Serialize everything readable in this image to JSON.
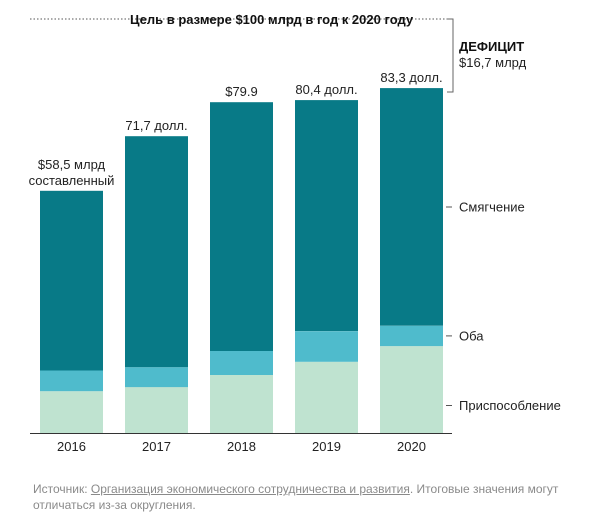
{
  "chart_data": {
    "type": "bar",
    "stacked": true,
    "categories": [
      "2016",
      "2017",
      "2018",
      "2019",
      "2020"
    ],
    "series": [
      {
        "name": "Приспособление",
        "color": "#bfe3d0",
        "values": [
          10.1,
          11.1,
          14.0,
          17.2,
          21.0
        ]
      },
      {
        "name": "Оба",
        "color": "#4fbbcc",
        "values": [
          5.0,
          4.8,
          5.8,
          7.4,
          4.9
        ]
      },
      {
        "name": "Смягчение",
        "color": "#087a87",
        "values": [
          43.4,
          55.8,
          60.1,
          55.8,
          57.4
        ]
      }
    ],
    "totals_labels": [
      [
        "$58,5 млрд",
        "составленный"
      ],
      [
        "71,7 долл."
      ],
      [
        "$79.9"
      ],
      [
        "80,4 долл."
      ],
      [
        "83,3 долл."
      ]
    ],
    "target": {
      "value": 100,
      "label": "Цель в размере $100 млрд в год к 2020 году"
    },
    "deficit": {
      "title": "ДЕФИЦИТ",
      "value": "$16,7 млрд"
    },
    "ylim": [
      0,
      100
    ],
    "grid": false
  },
  "source": {
    "prefix": "Источник: ",
    "link_text": "Организация экономического сотрудничества и развития",
    "suffix": ". Итоговые значения могут отличаться из-за округления."
  }
}
